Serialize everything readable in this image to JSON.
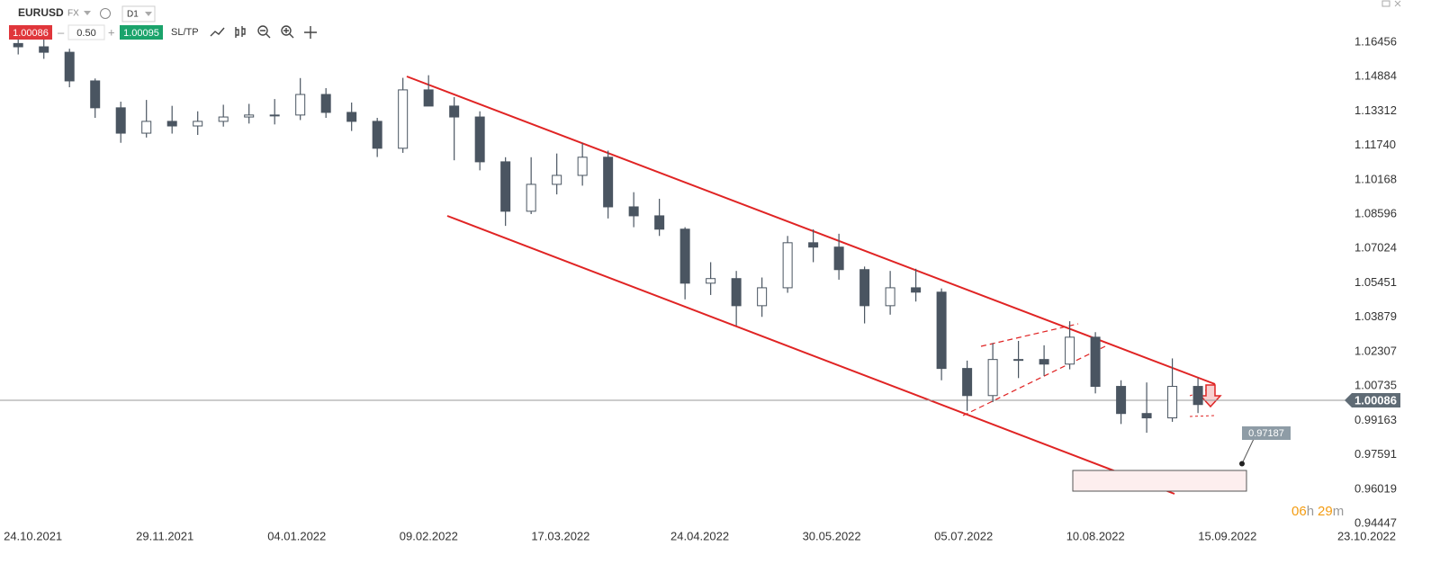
{
  "toolbar": {
    "symbol": "EURUSD",
    "market": "FX",
    "timeframe": "D1",
    "bid": "1.00086",
    "lot": "0.50",
    "ask": "1.00095",
    "sltp": "SL/TP"
  },
  "chart_data": {
    "type": "candlestick",
    "x": [
      "2021-10-18",
      "2021-10-25",
      "2021-11-01",
      "2021-11-08",
      "2021-11-15",
      "2021-11-22",
      "2021-11-29",
      "2021-12-06",
      "2021-12-13",
      "2021-12-20",
      "2021-12-27",
      "2022-01-03",
      "2022-01-10",
      "2022-01-17",
      "2022-01-24",
      "2022-01-31",
      "2022-02-07",
      "2022-02-14",
      "2022-02-21",
      "2022-02-28",
      "2022-03-07",
      "2022-03-14",
      "2022-03-21",
      "2022-03-28",
      "2022-04-04",
      "2022-04-11",
      "2022-04-18",
      "2022-04-25",
      "2022-05-02",
      "2022-05-09",
      "2022-05-16",
      "2022-05-23",
      "2022-05-30",
      "2022-06-06",
      "2022-06-13",
      "2022-06-20",
      "2022-06-27",
      "2022-07-04",
      "2022-07-11",
      "2022-07-18",
      "2022-07-25",
      "2022-08-01",
      "2022-08-08",
      "2022-08-15",
      "2022-08-22",
      "2022-08-29",
      "2022-09-05"
    ],
    "open": [
      1.164,
      1.1625,
      1.16,
      1.1469,
      1.1346,
      1.123,
      1.1284,
      1.1263,
      1.1284,
      1.1304,
      1.1313,
      1.1313,
      1.1407,
      1.1325,
      1.1284,
      1.1161,
      1.1428,
      1.1354,
      1.1304,
      1.1099,
      1.0873,
      1.0996,
      1.1037,
      1.112,
      1.0893,
      1.0852,
      1.0791,
      1.0544,
      1.0565,
      1.0441,
      1.0523,
      1.0729,
      1.0709,
      1.0606,
      1.0441,
      1.0523,
      1.0503,
      1.0154,
      1.003,
      1.0195,
      1.0195,
      1.0174,
      1.0297,
      1.0072,
      0.9948,
      0.9928,
      1.0072
    ],
    "high": [
      1.1668,
      1.1665,
      1.1616,
      1.148,
      1.1374,
      1.1382,
      1.1355,
      1.133,
      1.136,
      1.1364,
      1.1386,
      1.1482,
      1.1436,
      1.137,
      1.13,
      1.1483,
      1.1495,
      1.1395,
      1.133,
      1.112,
      1.112,
      1.1137,
      1.1185,
      1.115,
      1.096,
      1.093,
      1.08,
      1.064,
      1.06,
      1.057,
      1.076,
      1.079,
      1.077,
      1.062,
      1.06,
      1.061,
      1.052,
      1.019,
      1.027,
      1.028,
      1.026,
      1.037,
      1.032,
      1.01,
      1.009,
      1.02,
      1.011
    ],
    "low": [
      1.159,
      1.157,
      1.144,
      1.13,
      1.1186,
      1.121,
      1.1228,
      1.1222,
      1.126,
      1.1274,
      1.127,
      1.129,
      1.13,
      1.124,
      1.1121,
      1.114,
      1.137,
      1.1106,
      1.106,
      1.0806,
      1.086,
      1.095,
      1.099,
      1.084,
      1.08,
      1.076,
      1.047,
      1.049,
      1.035,
      1.039,
      1.05,
      1.064,
      1.056,
      1.036,
      1.04,
      1.046,
      1.01,
      0.996,
      1.0,
      1.011,
      1.012,
      1.015,
      1.004,
      0.99,
      0.986,
      0.991,
      0.995
    ],
    "close": [
      1.1625,
      1.16,
      1.1469,
      1.1346,
      1.123,
      1.1284,
      1.1263,
      1.1284,
      1.1304,
      1.1313,
      1.1313,
      1.1407,
      1.1325,
      1.1284,
      1.1161,
      1.1428,
      1.1354,
      1.1304,
      1.1099,
      1.0873,
      1.0996,
      1.1037,
      1.112,
      1.0893,
      1.0852,
      1.0791,
      1.0544,
      1.0565,
      1.0441,
      1.0523,
      1.0729,
      1.0709,
      1.0606,
      1.0441,
      1.0523,
      1.0503,
      1.0154,
      1.003,
      1.0195,
      1.0195,
      1.0174,
      1.0297,
      1.0072,
      0.9948,
      0.9928,
      1.0072,
      0.9989
    ],
    "up_color": "#ffffff",
    "down_color": "#4a5561",
    "wick_color": "#4a5561",
    "xlim": [
      "2021-10-15",
      "2022-10-16"
    ],
    "xticks": [
      {
        "value": "2021-10-24",
        "label": "24.10.2021"
      },
      {
        "value": "2021-11-29",
        "label": "29.11.2021"
      },
      {
        "value": "2022-01-04",
        "label": "04.01.2022"
      },
      {
        "value": "2022-02-09",
        "label": "09.02.2022"
      },
      {
        "value": "2022-03-17",
        "label": "17.03.2022"
      },
      {
        "value": "2022-04-24",
        "label": "24.04.2022"
      },
      {
        "value": "2022-05-30",
        "label": "30.05.2022"
      },
      {
        "value": "2022-07-05",
        "label": "05.07.2022"
      },
      {
        "value": "2022-08-10",
        "label": "10.08.2022"
      },
      {
        "value": "2022-09-15",
        "label": "15.09.2022"
      },
      {
        "value": "2022-10-23",
        "label": "23.10.2022"
      }
    ],
    "ylim": [
      0.9412,
      1.1839
    ],
    "yticks": [
      1.16456,
      1.14884,
      1.13312,
      {
        "value": 1.1174,
        "label": "1.11740"
      },
      1.10168,
      1.08596,
      1.07024,
      1.05451,
      1.03879,
      1.02307,
      1.00735,
      0.99163,
      0.97591,
      0.96019,
      0.94447
    ],
    "grid": false,
    "last_price": 1.00086,
    "target": 0.97187,
    "countdown": [
      "06",
      "h",
      "29",
      "m"
    ]
  }
}
